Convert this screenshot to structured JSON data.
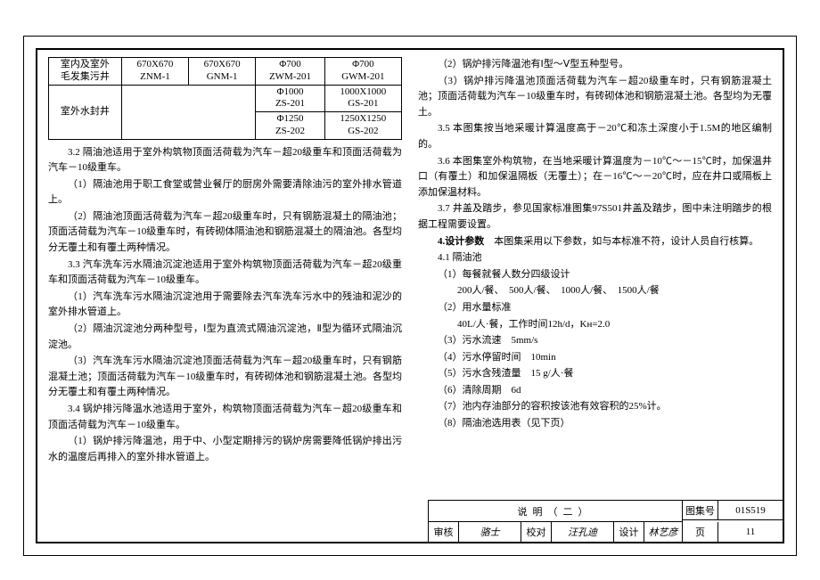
{
  "table": {
    "r1": {
      "c1": "室内及室外\n毛发集污井",
      "c2": "670X670\nZNM-1",
      "c3": "670X670\nGNM-1",
      "c4": "Φ700\nZWM-201",
      "c5": "Φ700\nGWM-201"
    },
    "r2": {
      "c1": "室外水封井",
      "c4": "Φ1000\nZS-201",
      "c5": "1000X1000\nGS-201"
    },
    "r3": {
      "c4": "Φ1250\nZS-202",
      "c5": "1250X1250\nGS-202"
    }
  },
  "left": {
    "p1": "3.2 隔油池适用于室外构筑物顶面活荷载为汽车－超20级重车和顶面活荷载为汽车－10级重车。",
    "p2": "（1）隔油池用于职工食堂或营业餐厅的厨房外需要清除油污的室外排水管道上。",
    "p3": "（2）隔油池顶面活荷载为汽车－超20级重车时，只有钢筋混凝土的隔油池；顶面活荷载为汽车－10级重车时，有砖砌体隔油池和钢筋混凝土的隔油池。各型均分无覆土和有覆土两种情况。",
    "p4": "3.3 汽车洗车污水隔油沉淀池适用于室外构筑物顶面活荷载为汽车－超20级重车和顶面活荷载为汽车－10级重车。",
    "p5": "（1）汽车洗车污水隔油沉淀池用于需要除去汽车洗车污水中的残油和泥沙的室外排水管道上。",
    "p6": "（2）隔油沉淀池分两种型号，Ⅰ型为直流式隔油沉淀池，Ⅱ型为循环式隔油沉淀池。",
    "p7": "（3）汽车洗车污水隔油沉淀池顶面活荷载为汽车－超20级重车时，只有钢筋混凝土池；顶面活荷载为汽车－10级重车时，有砖砌体池和钢筋混凝土池。各型均分无覆土和有覆土两种情况。",
    "p8": "3.4 锅炉排污降温水池适用于室外，构筑物顶面活荷载为汽车－超20级重车和顶面活荷载为汽车－10级重车。",
    "p9": "（1）锅炉排污降温池，用于中、小型定期排污的锅炉房需要降低锅炉排出污水的温度后再排入的室外排水管道上。"
  },
  "right": {
    "p1": "（2）锅炉排污降温池有Ⅰ型～Ⅴ型五种型号。",
    "p2": "（3）锅炉排污降温池顶面活荷载为汽车－超20级重车时，只有钢筋混凝土池；顶面活荷载为汽车－10级重车时，有砖砌体池和钢筋混凝土池。各型均为无覆土。",
    "p3": "3.5 本图集按当地采暖计算温度高于－20℃和冻土深度小于1.5M的地区编制的。",
    "p4": "3.6 本图集室外构筑物，在当地采暖计算温度为－10℃～－15℃时，加保温井口（有覆土）和加保温隔板（无覆土）；在－16℃～－20℃时，应在井口或隔板上添加保温材料。",
    "p5": "3.7 井盖及踏步，参见国家标准图集97S501井盖及踏步，图中未注明踏步的根据工程需要设置。",
    "p6": "4.设计参数　本图集采用以下参数，如与本标准不符，设计人员自行核算。",
    "p7": "4.1 隔油池",
    "p8": "（1）每餐就餐人数分四级设计",
    "p9": "200人/餐、　500人/餐、　1000人/餐、　1500人/餐",
    "p10": "（2）用水量标准",
    "p11": "40L/人·餐，工作时间12h/d，Kн=2.0",
    "p12": "（3）污水流速　5mm/s",
    "p13": "（4）污水停留时间　10min",
    "p14": "（5）污水含残渣量　15 g/人·餐",
    "p15": "（6）清除周期　6d",
    "p16": "（7）池内存油部分的容积按该池有效容积的25%计。",
    "p17": "（8）隔油池选用表（见下页）"
  },
  "titleblock": {
    "title": "说明（二）",
    "set_lbl": "图集号",
    "set_val": "01S519",
    "chk_lbl": "审核",
    "chk_val": "骆士",
    "rev_lbl": "校对",
    "rev_val": "汪孔迪",
    "des_lbl": "设计",
    "des_val": "林艺彦",
    "pg_lbl": "页",
    "pg_val": "11"
  }
}
